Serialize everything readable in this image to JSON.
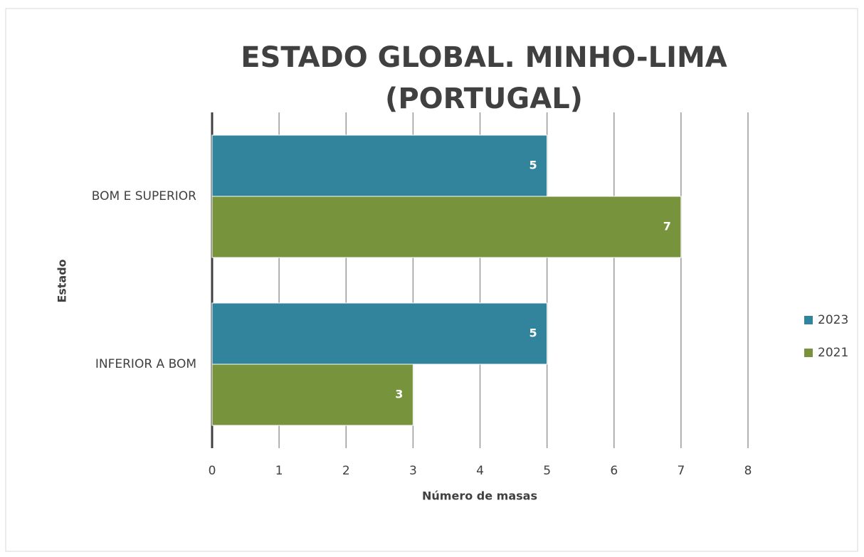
{
  "chart_data": {
    "type": "bar",
    "orientation": "horizontal",
    "title": "ESTADO GLOBAL. MINHO-LIMA (PORTUGAL)",
    "x_label": "Número de masas",
    "y_label": "Estado",
    "categories": [
      "BOM E SUPERIOR",
      "INFERIOR A BOM"
    ],
    "series": [
      {
        "name": "2023",
        "color": "#31849b",
        "values": [
          5,
          5
        ]
      },
      {
        "name": "2021",
        "color": "#77933c",
        "values": [
          7,
          3
        ]
      }
    ],
    "xlim": [
      0,
      8
    ],
    "xticks": [
      0,
      1,
      2,
      3,
      4,
      5,
      6,
      7,
      8
    ],
    "grid": true,
    "legend": "right"
  }
}
